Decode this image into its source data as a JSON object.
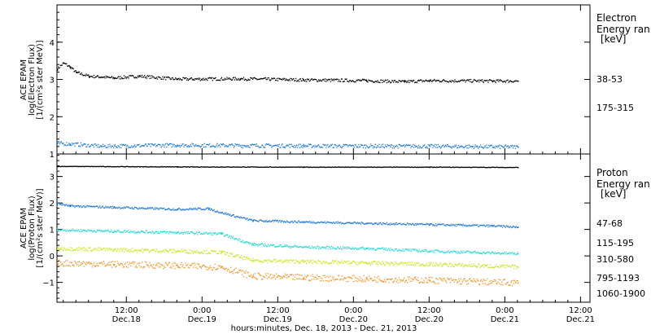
{
  "xaxis": {
    "title": "hours:minutes, Dec. 18, 2013 - Dec. 21, 2013",
    "ticks": [
      {
        "time": "12:00",
        "date": "Dec.18",
        "t": 12
      },
      {
        "time": "0:00",
        "date": "Dec.19",
        "t": 24
      },
      {
        "time": "12:00",
        "date": "Dec.19",
        "t": 36
      },
      {
        "time": "0:00",
        "date": "Dec.20",
        "t": 48
      },
      {
        "time": "12:00",
        "date": "Dec.20",
        "t": 60
      },
      {
        "time": "0:00",
        "date": "Dec.21",
        "t": 72
      },
      {
        "time": "12:00",
        "date": "Dec.21",
        "t": 84
      }
    ],
    "range_hours": [
      1,
      85.5
    ],
    "data_end_hours": 74
  },
  "top_panel": {
    "ylabel_lines": [
      "ACE EPAM",
      "log(Electron Flux)",
      "[1/(cm²s ster MeV)]"
    ],
    "legend_title_lines": [
      "Electron",
      "Energy ran",
      "[keV]"
    ],
    "channels": [
      {
        "label": "38-53",
        "color": "#000000"
      },
      {
        "label": "175-315",
        "color": "#1f78d8"
      }
    ]
  },
  "bottom_panel": {
    "ylabel_lines": [
      "ACE EPAM",
      "log(Proton Flux)",
      "[1/(cm²s ster MeV)]"
    ],
    "legend_title_lines": [
      "Proton",
      "Energy ran",
      "[keV]"
    ],
    "channels": [
      {
        "label": "47-68",
        "color": "#000000"
      },
      {
        "label": "115-195",
        "color": "#1f78d8"
      },
      {
        "label": "310-580",
        "color": "#22d8d0"
      },
      {
        "label": "795-1193",
        "color": "#c8e61e"
      },
      {
        "label": "1060-1900",
        "color": "#f29020"
      }
    ]
  },
  "chart_data": [
    {
      "type": "scatter",
      "x_unit": "hours since Dec. 18, 2013 00:00",
      "ylim": [
        1,
        5
      ],
      "yticks": [
        1,
        2,
        3,
        4
      ],
      "series": [
        {
          "name": "38-53",
          "color": "#000000",
          "x": [
            1,
            2,
            3,
            4,
            6,
            8,
            10,
            14,
            20,
            30,
            40,
            50,
            56,
            60,
            70,
            74
          ],
          "y": [
            3.3,
            3.45,
            3.35,
            3.2,
            3.1,
            3.08,
            3.05,
            3.1,
            3.02,
            3.03,
            3.0,
            2.98,
            2.95,
            2.98,
            2.97,
            2.97
          ]
        },
        {
          "name": "175-315",
          "color": "#1f78d8",
          "x": [
            1,
            3,
            8,
            20,
            40,
            60,
            74
          ],
          "y": [
            1.3,
            1.28,
            1.22,
            1.25,
            1.23,
            1.22,
            1.2
          ]
        }
      ]
    },
    {
      "type": "scatter",
      "x_unit": "hours since Dec. 18, 2013 00:00",
      "ylim": [
        -1.75,
        3.85
      ],
      "yticks": [
        -1,
        0,
        1,
        2,
        3
      ],
      "series": [
        {
          "name": "47-68",
          "color": "#000000",
          "x": [
            1,
            20,
            40,
            60,
            74
          ],
          "y": [
            3.4,
            3.38,
            3.37,
            3.37,
            3.36
          ]
        },
        {
          "name": "115-195",
          "color": "#1f78d8",
          "x": [
            1,
            3,
            10,
            20,
            25,
            27,
            32,
            40,
            50,
            60,
            70,
            74
          ],
          "y": [
            2.0,
            1.9,
            1.85,
            1.78,
            1.8,
            1.65,
            1.35,
            1.3,
            1.25,
            1.2,
            1.15,
            1.1
          ]
        },
        {
          "name": "310-580",
          "color": "#22d8d0",
          "x": [
            1,
            10,
            20,
            27,
            32,
            40,
            50,
            60,
            74
          ],
          "y": [
            1.0,
            0.95,
            0.9,
            0.85,
            0.45,
            0.35,
            0.3,
            0.2,
            0.1
          ]
        },
        {
          "name": "795-1193",
          "color": "#c8e61e",
          "x": [
            1,
            10,
            20,
            27,
            32,
            40,
            50,
            60,
            74
          ],
          "y": [
            0.3,
            0.25,
            0.2,
            0.15,
            -0.15,
            -0.2,
            -0.25,
            -0.3,
            -0.4
          ]
        },
        {
          "name": "1060-1900",
          "color": "#f29020",
          "x": [
            1,
            10,
            20,
            27,
            32,
            40,
            50,
            60,
            74
          ],
          "y": [
            -0.25,
            -0.3,
            -0.35,
            -0.4,
            -0.75,
            -0.8,
            -0.85,
            -0.9,
            -1.0
          ]
        }
      ]
    }
  ]
}
